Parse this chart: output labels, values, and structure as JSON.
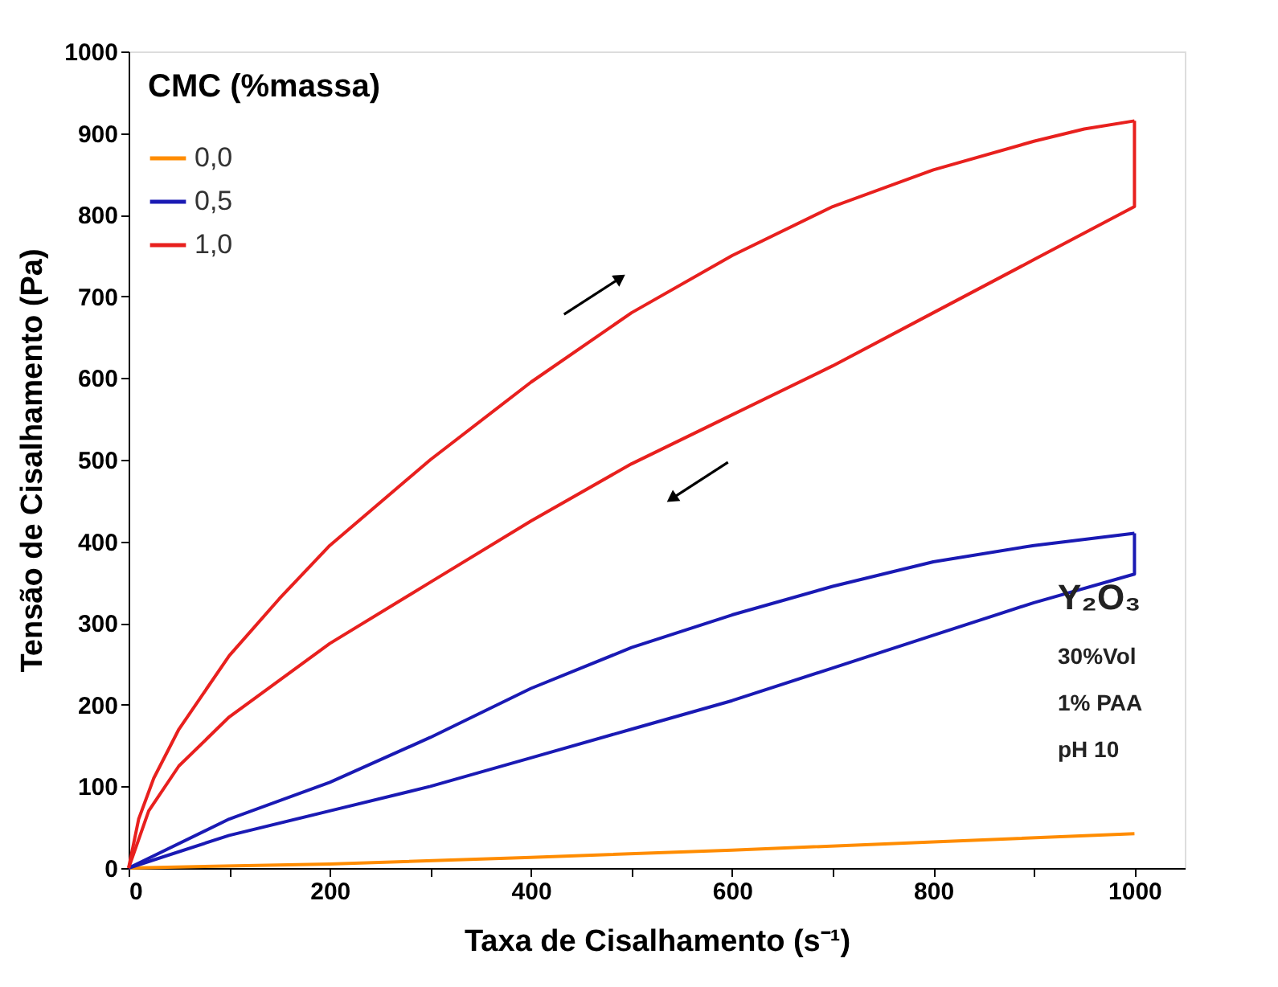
{
  "chart_data": {
    "type": "line",
    "xlabel": "Taxa de Cisalhamento (s⁻¹)",
    "ylabel": "Tensão de Cisalhamento (Pa)",
    "legend_title": "CMC (%massa)",
    "legend": "top left",
    "grid": false,
    "marker": "none",
    "line_style": "solid",
    "xlim": [
      0,
      1050
    ],
    "ylim": [
      0,
      1000
    ],
    "xticks": [
      0,
      {
        "value": 100,
        "label": null
      },
      200,
      {
        "value": 300,
        "label": null
      },
      400,
      {
        "value": 500,
        "label": null
      },
      600,
      {
        "value": 700,
        "label": null
      },
      800,
      {
        "value": 900,
        "label": null
      },
      1000
    ],
    "yticks": [
      0,
      100,
      200,
      300,
      400,
      500,
      600,
      700,
      800,
      900,
      1000
    ],
    "series": [
      {
        "name": "0,0",
        "color": "#ff8c00",
        "x": [
          0,
          200,
          400,
          600,
          800,
          1000
        ],
        "values": [
          0,
          5,
          13,
          22,
          32,
          42
        ]
      },
      {
        "name": "0,5",
        "color": "#1a1ab4",
        "x": [
          0,
          100,
          200,
          300,
          400,
          500,
          600,
          700,
          800,
          900,
          1000
        ],
        "values": [
          0,
          60,
          105,
          160,
          220,
          270,
          310,
          345,
          375,
          395,
          410
        ]
      },
      {
        "color": "#1a1ab4",
        "x": [
          0,
          100,
          200,
          300,
          400,
          500,
          600,
          700,
          800,
          900,
          1000,
          1000
        ],
        "values": [
          0,
          40,
          70,
          100,
          135,
          170,
          205,
          245,
          285,
          325,
          360,
          410
        ]
      },
      {
        "name": "1,0",
        "color": "#e8201e",
        "x": [
          0,
          10,
          25,
          50,
          100,
          150,
          200,
          300,
          400,
          500,
          600,
          700,
          800,
          900,
          950,
          1000
        ],
        "values": [
          0,
          60,
          110,
          170,
          260,
          330,
          395,
          500,
          595,
          680,
          750,
          810,
          855,
          890,
          905,
          915
        ]
      },
      {
        "color": "#e8201e",
        "x": [
          0,
          20,
          50,
          100,
          200,
          300,
          400,
          500,
          600,
          700,
          800,
          900,
          1000,
          1000
        ],
        "values": [
          0,
          70,
          125,
          185,
          275,
          350,
          425,
          495,
          555,
          615,
          680,
          745,
          810,
          915
        ]
      }
    ],
    "annotations": [
      "Y₂O₃",
      "30%Vol",
      "1% PAA",
      "pH 10"
    ]
  }
}
